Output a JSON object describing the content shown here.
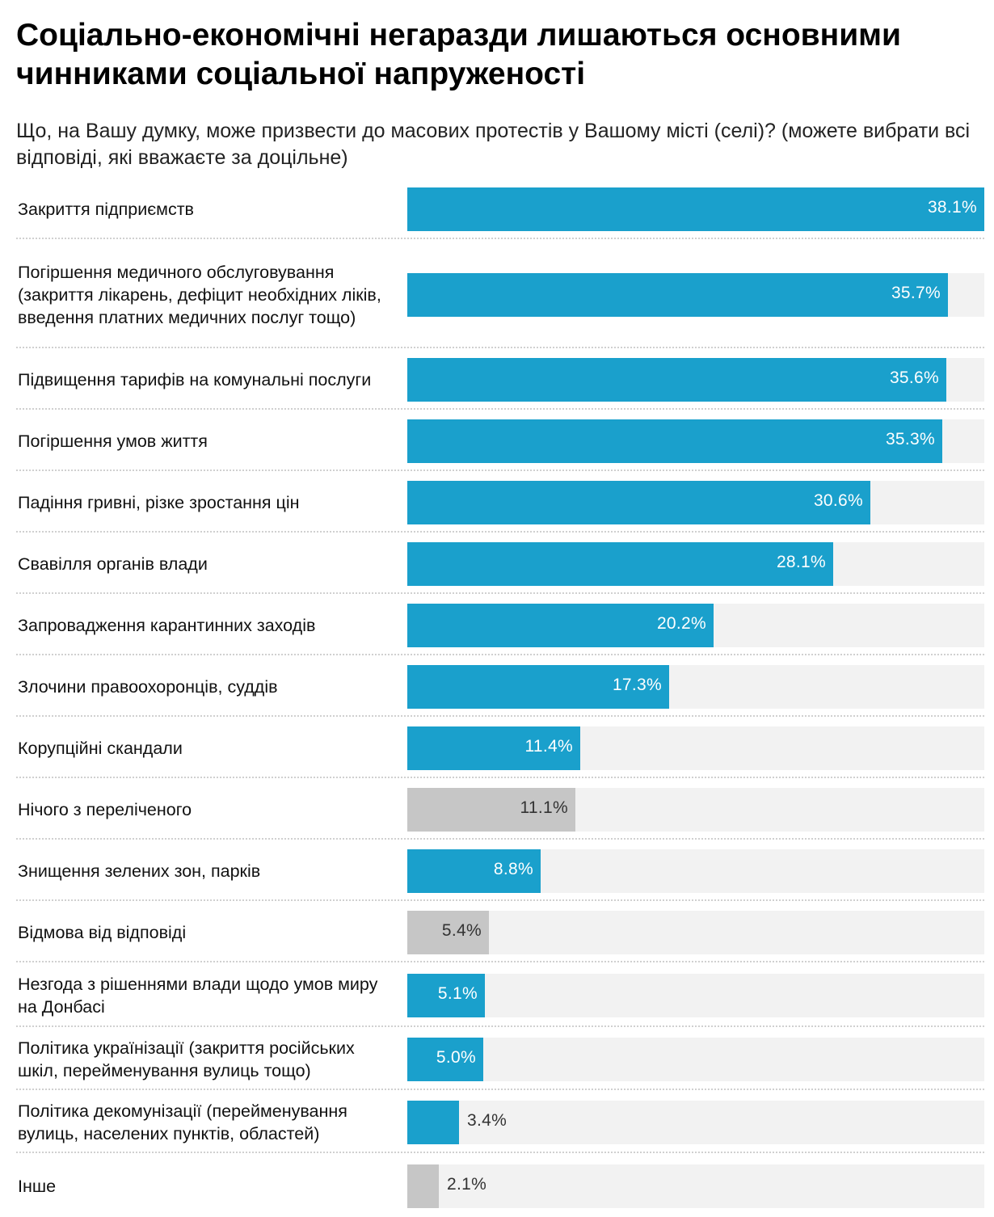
{
  "title": "Соціально-економічні негаразди лишаються основними чинниками соціальної напруженості",
  "subtitle": "Що, на Вашу думку, може призвести до масових протестів у Вашому місті (селі)? (можете вибрати всі відповіді, які вважаєте за доцільне)",
  "colors": {
    "accent": "#1aa0cc",
    "neutral": "#c6c6c6",
    "track": "#f2f2f2",
    "value_on_accent": "#ffffff",
    "value_on_neutral": "#333333"
  },
  "chart_data": {
    "type": "bar",
    "orientation": "horizontal",
    "xlim": [
      0,
      38.1
    ],
    "unit": "%",
    "categories": [
      "Закриття підприємств",
      "Погіршення медичного обслуговування (закриття лікарень, дефіцит необхідних ліків, введення платних медичних послуг тощо)",
      "Підвищення тарифів на комунальні послуги",
      "Погіршення умов життя",
      "Падіння гривні, різке зростання цін",
      "Свавілля органів влади",
      "Запровадження карантинних заходів",
      "Злочини правоохоронців, суддів",
      "Корупційні скандали",
      "Нічого з переліченого",
      "Знищення зелених зон, парків",
      "Відмова від відповіді",
      "Незгода з рішеннями влади щодо умов миру на Донбасі",
      "Політика українізації (закриття російських шкіл, перейменування вулиць тощо)",
      "Політика декомунізації (перейменування вулиць, населених пунктів, областей)",
      "Інше"
    ],
    "values": [
      38.1,
      35.7,
      35.6,
      35.3,
      30.6,
      28.1,
      20.2,
      17.3,
      11.4,
      11.1,
      8.8,
      5.4,
      5.1,
      5.0,
      3.4,
      2.1
    ],
    "value_labels": [
      "38.1%",
      "35.7%",
      "35.6%",
      "35.3%",
      "30.6%",
      "28.1%",
      "20.2%",
      "17.3%",
      "11.4%",
      "11.1%",
      "8.8%",
      "5.4%",
      "5.1%",
      "5.0%",
      "3.4%",
      "2.1%"
    ],
    "bar_colors": [
      "accent",
      "accent",
      "accent",
      "accent",
      "accent",
      "accent",
      "accent",
      "accent",
      "accent",
      "neutral",
      "accent",
      "neutral",
      "accent",
      "accent",
      "accent",
      "neutral"
    ]
  }
}
